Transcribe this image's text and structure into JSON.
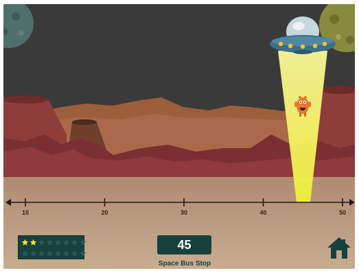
{
  "game": {
    "number_line": {
      "tick_labels": [
        "10",
        "20",
        "30",
        "40",
        "50"
      ],
      "min": 10,
      "max": 50,
      "beam_target": 45
    },
    "answer": {
      "value": "45",
      "caption": "Space Bus Stop"
    },
    "stars": {
      "earned": 2,
      "total": 16,
      "filled_color": "#f6e03a",
      "empty_color": "#2a5a55"
    },
    "icons": {
      "home": "home-icon",
      "ufo": "ufo-icon",
      "alien": "alien-icon",
      "star": "star-icon"
    },
    "colors": {
      "sky": "#3a3a3a",
      "ground": "#b8997d",
      "panel": "#17413d",
      "beam": "#f4ef3a"
    }
  }
}
